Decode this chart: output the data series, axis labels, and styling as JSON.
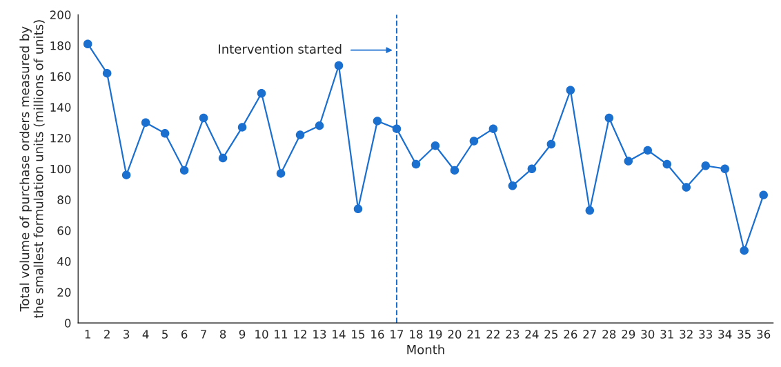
{
  "chart_data": {
    "type": "line",
    "xlabel": "Month",
    "ylabel": "Total volume of purchase orders measured by\nthe smallest formulation units (millions of units)",
    "x": [
      1,
      2,
      3,
      4,
      5,
      6,
      7,
      8,
      9,
      10,
      11,
      12,
      13,
      14,
      15,
      16,
      17,
      18,
      19,
      20,
      21,
      22,
      23,
      24,
      25,
      26,
      27,
      28,
      29,
      30,
      31,
      32,
      33,
      34,
      35,
      36
    ],
    "series": [
      {
        "color": "#1a6fcf",
        "values": [
          181,
          162,
          96,
          130,
          123,
          99,
          133,
          107,
          127,
          149,
          97,
          122,
          128,
          167,
          74,
          131,
          126,
          103,
          115,
          99,
          118,
          126,
          89,
          100,
          116,
          151,
          73,
          133,
          105,
          112,
          103,
          88,
          102,
          100,
          47,
          83
        ]
      }
    ],
    "xlim": [
      0.5,
      36.5
    ],
    "xticks": [
      1,
      2,
      3,
      4,
      5,
      6,
      7,
      8,
      9,
      10,
      11,
      12,
      13,
      14,
      15,
      16,
      17,
      18,
      19,
      20,
      21,
      22,
      23,
      24,
      25,
      26,
      27,
      28,
      29,
      30,
      31,
      32,
      33,
      34,
      35,
      36
    ],
    "ylim": [
      0,
      200
    ],
    "yticks": [
      0,
      20,
      40,
      60,
      80,
      100,
      120,
      140,
      160,
      180,
      200
    ],
    "ref_lines": [
      {
        "axis": "x",
        "value": 17,
        "color": "#1a6fcf",
        "line_style": "dashed"
      }
    ],
    "annotations": [
      "Intervention started"
    ],
    "marker": "circle",
    "line_style": "solid",
    "grid": false,
    "legend": false
  }
}
